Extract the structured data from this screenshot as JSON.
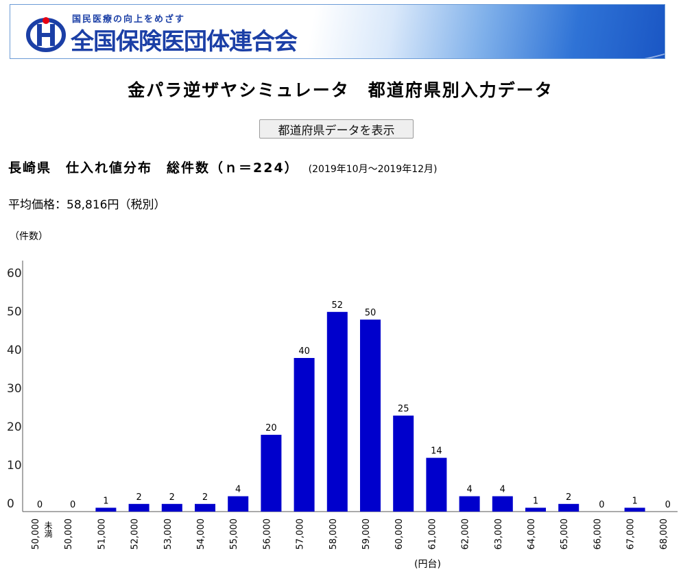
{
  "header": {
    "org_tagline": "国民医療の向上をめざす",
    "org_name": "全国保険医団体連合会"
  },
  "page_title": "金パラ逆ザヤシミュレータ　都道府県別入力データ",
  "button_label": "都道府県データを表示",
  "distribution": {
    "heading": "長崎県　仕入れ値分布　総件数（ｎ＝224）",
    "period": "(2019年10月～2019年12月)",
    "average_label": "平均価格：58,816円（税別）"
  },
  "colors": {
    "bar": "#0000cc",
    "accent": "#1b3fa6",
    "logo_red": "#e60012"
  },
  "chart_data": {
    "type": "bar",
    "y_unit_label": "（件数）",
    "x_unit_label": "(円台)",
    "ylim": [
      0,
      60
    ],
    "yticks": [
      0,
      10,
      20,
      30,
      40,
      50,
      60
    ],
    "categories": [
      "50,000未満",
      "50,000",
      "51,000",
      "52,000",
      "53,000",
      "54,000",
      "55,000",
      "56,000",
      "57,000",
      "58,000",
      "59,000",
      "60,000",
      "61,000",
      "62,000",
      "63,000",
      "64,000",
      "65,000",
      "66,000",
      "67,000",
      "68,000"
    ],
    "values": [
      0,
      0,
      1,
      2,
      2,
      2,
      4,
      20,
      40,
      52,
      50,
      25,
      14,
      4,
      4,
      1,
      2,
      0,
      1,
      0
    ],
    "data_labels": true,
    "grid": false
  }
}
